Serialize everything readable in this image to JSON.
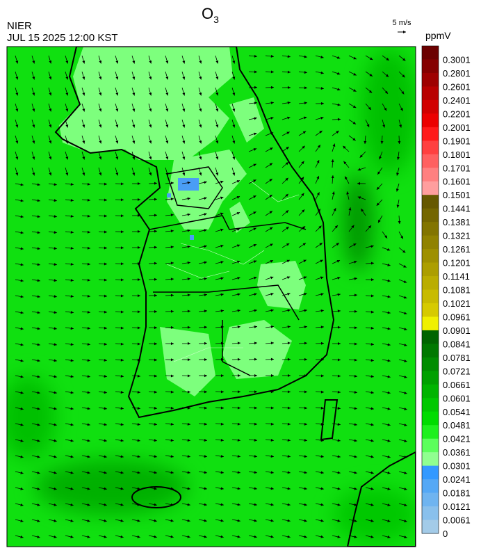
{
  "header": {
    "title": {
      "main": "O",
      "sub": "3"
    },
    "agency": "NIER",
    "datetime": "JUL 15 2025 12:00 KST"
  },
  "wind_scale": {
    "label": "5 m/s"
  },
  "colorbar": {
    "unit": "ppmV",
    "levels": [
      {
        "label": "0.3001",
        "color": "#6b0000"
      },
      {
        "label": "0.2801",
        "color": "#850000"
      },
      {
        "label": "0.2601",
        "color": "#9e0000"
      },
      {
        "label": "0.2401",
        "color": "#b80000"
      },
      {
        "label": "0.2201",
        "color": "#d10000"
      },
      {
        "label": "0.2001",
        "color": "#eb0000"
      },
      {
        "label": "0.1901",
        "color": "#ff1a1a"
      },
      {
        "label": "0.1801",
        "color": "#ff4040"
      },
      {
        "label": "0.1701",
        "color": "#ff6060"
      },
      {
        "label": "0.1601",
        "color": "#ff8080"
      },
      {
        "label": "0.1501",
        "color": "#ff9e9e"
      },
      {
        "label": "0.1441",
        "color": "#665800"
      },
      {
        "label": "0.1381",
        "color": "#746600"
      },
      {
        "label": "0.1321",
        "color": "#827400"
      },
      {
        "label": "0.1261",
        "color": "#908200"
      },
      {
        "label": "0.1201",
        "color": "#9e9000"
      },
      {
        "label": "0.1141",
        "color": "#ac9e00"
      },
      {
        "label": "0.1081",
        "color": "#baad00"
      },
      {
        "label": "0.1021",
        "color": "#c8bb00"
      },
      {
        "label": "0.0961",
        "color": "#d6ca00"
      },
      {
        "label": "0.0901",
        "color": "#f0f000"
      },
      {
        "label": "0.0841",
        "color": "#006400"
      },
      {
        "label": "0.0781",
        "color": "#007800"
      },
      {
        "label": "0.0721",
        "color": "#008c00"
      },
      {
        "label": "0.0661",
        "color": "#00a000"
      },
      {
        "label": "0.0601",
        "color": "#00b400"
      },
      {
        "label": "0.0541",
        "color": "#00c800"
      },
      {
        "label": "0.0481",
        "color": "#00dc00"
      },
      {
        "label": "0.0421",
        "color": "#1ef01e"
      },
      {
        "label": "0.0361",
        "color": "#5cff5c"
      },
      {
        "label": "0.0301",
        "color": "#90ff90"
      },
      {
        "label": "0.0241",
        "color": "#3399ff"
      },
      {
        "label": "0.0181",
        "color": "#55a8f5"
      },
      {
        "label": "0.0121",
        "color": "#6fb4f0"
      },
      {
        "label": "0.0061",
        "color": "#89c0ec"
      },
      {
        "label": "0",
        "color": "#a3cbe8"
      }
    ]
  }
}
